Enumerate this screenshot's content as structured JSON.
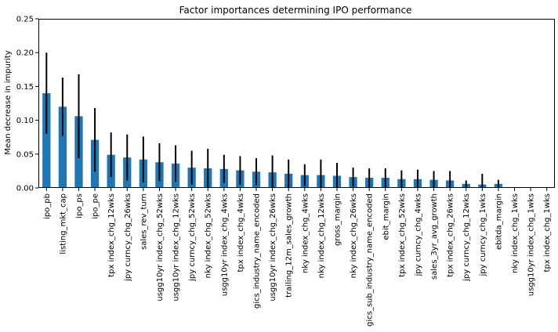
{
  "chart_data": {
    "type": "bar",
    "title": "Factor importances determining IPO performance",
    "xlabel": "",
    "ylabel": "Mean decrease in impurity",
    "ylim": [
      0,
      0.25
    ],
    "yticks": [
      "0.00",
      "0.05",
      "0.10",
      "0.15",
      "0.20",
      "0.25"
    ],
    "grid": false,
    "bar_color": "#1f77b4",
    "error_color": "#000000",
    "categories": [
      "ipo_pb",
      "listing_mkt_cap",
      "ipo_ps",
      "ipo_pe",
      "tpx index_chg_12wks",
      "jpy curncy_chg_26wks",
      "sales_rev_turn",
      "usgg10yr index_chg_52wks",
      "usgg10yr index_chg_12wks",
      "jpy curncy_chg_52wks",
      "nky index_chg_52wks",
      "usgg10yr index_chg_4wks",
      "tpx index_chg_4wks",
      "gics_industry_name_encoded",
      "usgg10yr index_chg_26wks",
      "trailing_12m_sales_growth",
      "nky index_chg_4wks",
      "nky index_chg_12wks",
      "gross_margin",
      "nky index_chg_26wks",
      "gics_sub_industry_name_encoded",
      "ebit_margin",
      "tpx index_chg_52wks",
      "jpy curncy_chg_4wks",
      "sales_3yr_avg_growth",
      "tpx index_chg_26wks",
      "jpy curncy_chg_12wks",
      "jpy curncy_chg_1wks",
      "ebitda_margin",
      "nky index_chg_1wks",
      "usgg10yr index_chg_1wks",
      "tpx index_chg_1wks"
    ],
    "values": [
      0.14,
      0.12,
      0.106,
      0.071,
      0.049,
      0.045,
      0.042,
      0.038,
      0.036,
      0.03,
      0.029,
      0.028,
      0.026,
      0.024,
      0.023,
      0.021,
      0.019,
      0.019,
      0.018,
      0.016,
      0.015,
      0.015,
      0.013,
      0.013,
      0.012,
      0.011,
      0.006,
      0.005,
      0.006,
      0.0,
      0.0,
      0.0
    ],
    "errors": [
      0.06,
      0.043,
      0.062,
      0.047,
      0.033,
      0.034,
      0.034,
      0.028,
      0.027,
      0.025,
      0.029,
      0.021,
      0.021,
      0.02,
      0.025,
      0.021,
      0.016,
      0.023,
      0.019,
      0.014,
      0.014,
      0.014,
      0.013,
      0.014,
      0.013,
      0.014,
      0.005,
      0.016,
      0.006,
      0.0,
      0.0,
      0.0
    ]
  }
}
